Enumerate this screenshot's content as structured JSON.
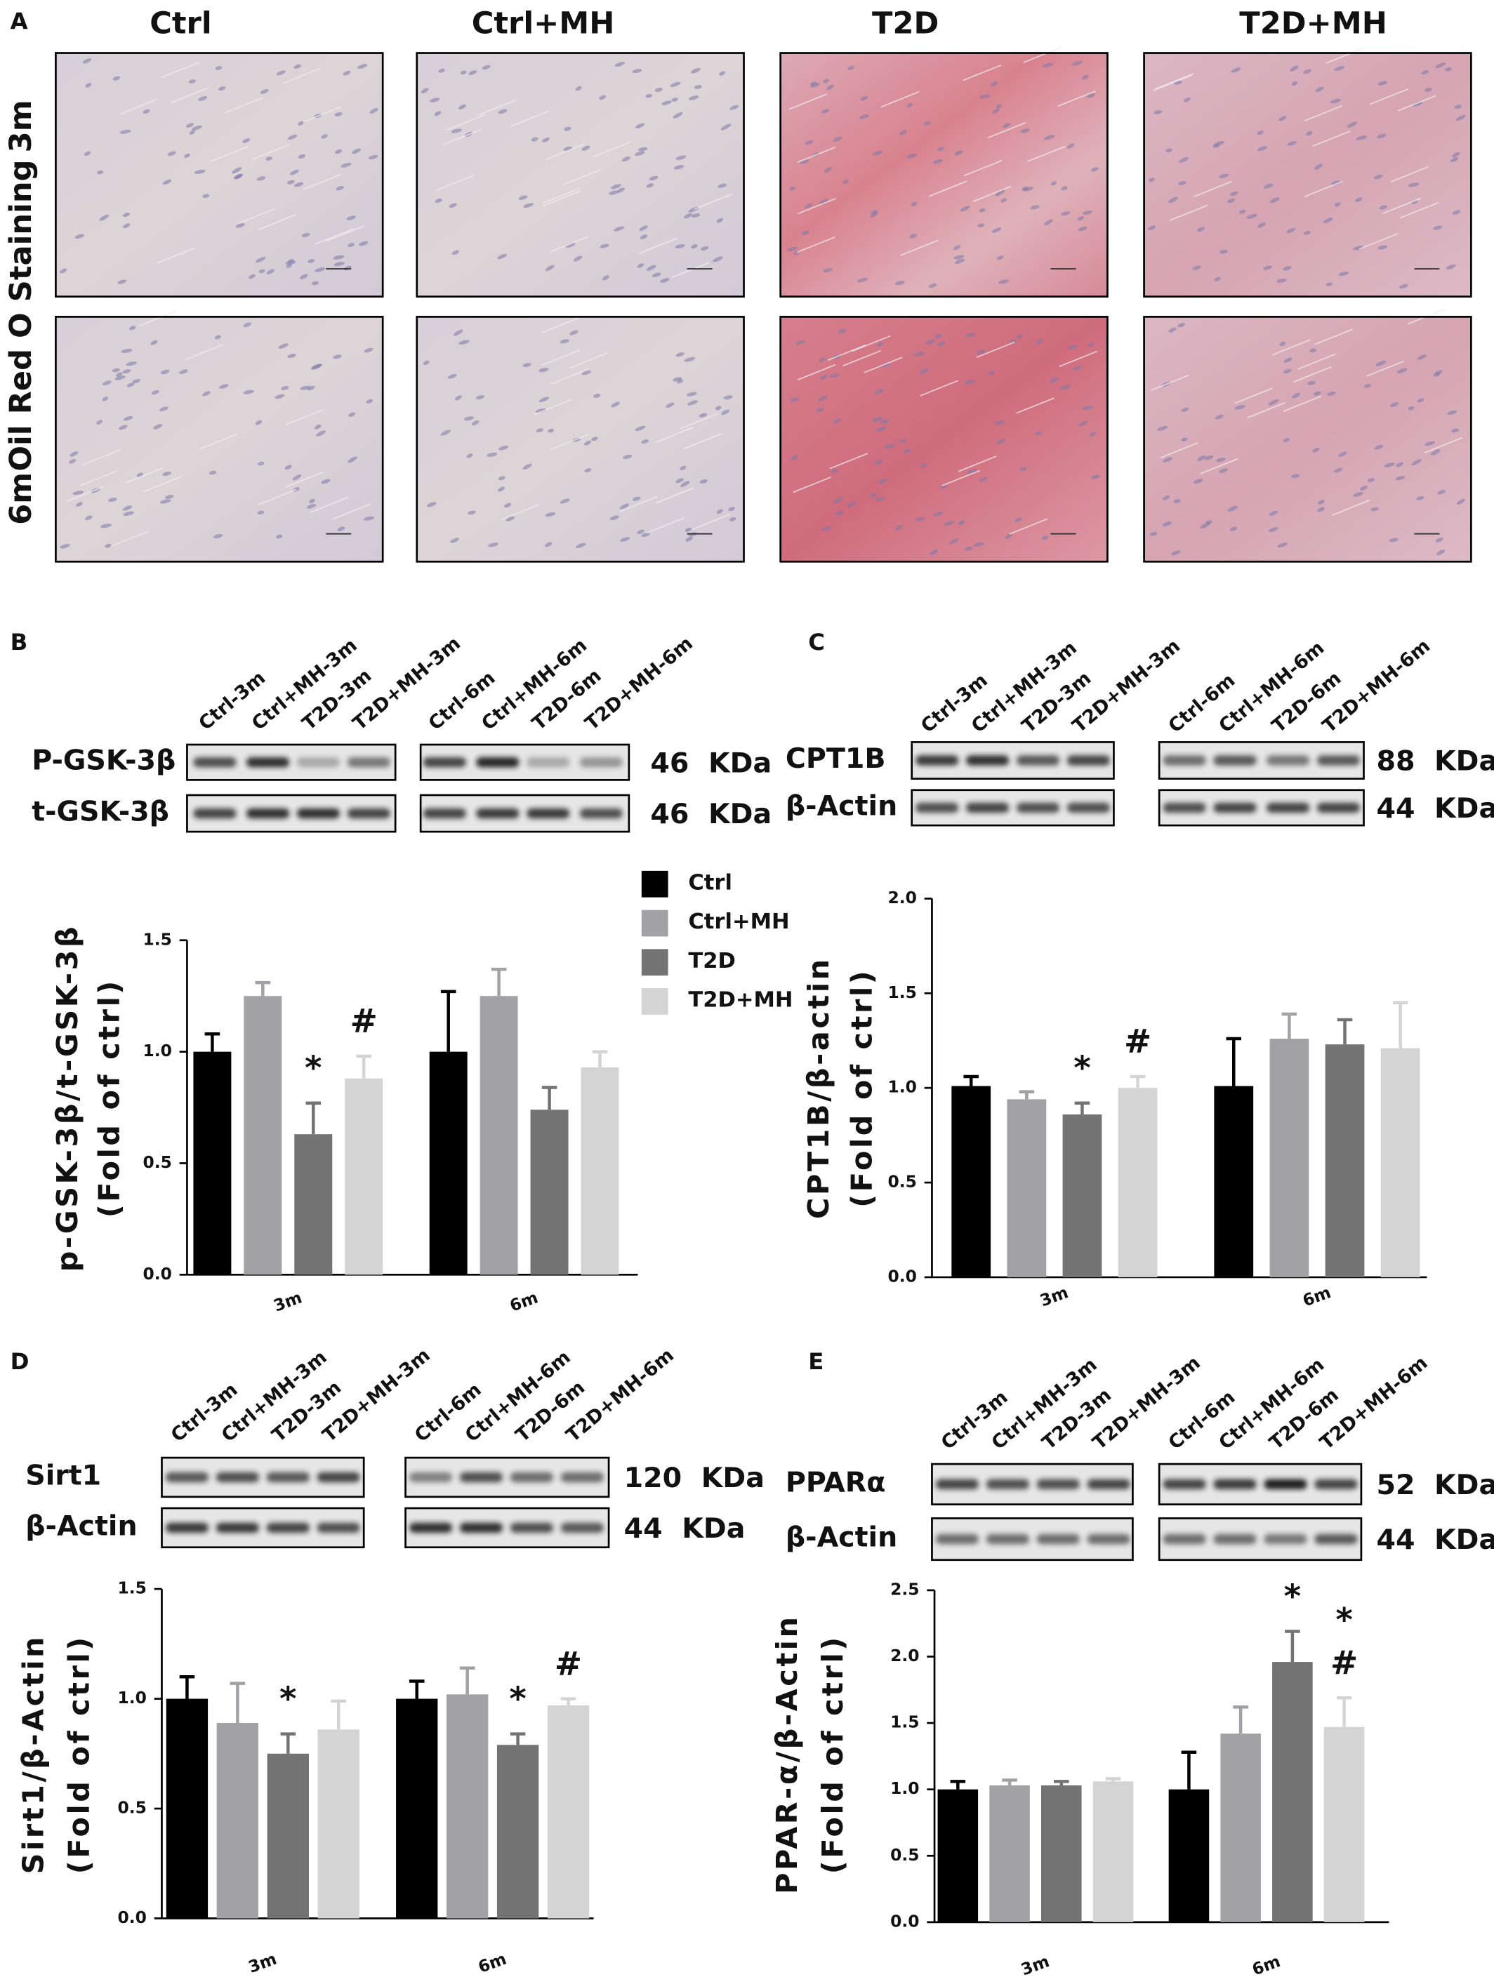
{
  "panel_labels": [
    "A",
    "B",
    "C",
    "D",
    "E"
  ],
  "staining": {
    "columns": [
      "Ctrl",
      "Ctrl+MH",
      "T2D",
      "T2D+MH"
    ],
    "rows": [
      "3m",
      "6m"
    ],
    "side_label": "Oil Red O Staining"
  },
  "blots": [
    {
      "lanes": [
        "Ctrl-3m",
        "Ctrl+MH-3m",
        "T2D-3m",
        "T2D+MH-3m",
        "Ctrl-6m",
        "Ctrl+MH-6m",
        "T2D-6m",
        "T2D+MH-6m"
      ],
      "rows": [
        {
          "protein": "P-GSK-3β",
          "size": "46  KDa"
        },
        {
          "protein": "t-GSK-3β",
          "size": "46  KDa"
        }
      ]
    },
    {
      "lanes": [
        "Ctrl-3m",
        "Ctrl+MH-3m",
        "T2D-3m",
        "T2D+MH-3m",
        "Ctrl-6m",
        "Ctrl+MH-6m",
        "T2D-6m",
        "T2D+MH-6m"
      ],
      "rows": [
        {
          "protein": "CPT1B",
          "size": "88  KDa"
        },
        {
          "protein": "β-Actin",
          "size": "44  KDa"
        }
      ]
    },
    {
      "lanes": [
        "Ctrl-3m",
        "Ctrl+MH-3m",
        "T2D-3m",
        "T2D+MH-3m",
        "Ctrl-6m",
        "Ctrl+MH-6m",
        "T2D-6m",
        "T2D+MH-6m"
      ],
      "rows": [
        {
          "protein": "Sirt1",
          "size": "120  KDa"
        },
        {
          "protein": "β-Actin",
          "size": "44  KDa"
        }
      ]
    },
    {
      "lanes": [
        "Ctrl-3m",
        "Ctrl+MH-3m",
        "T2D-3m",
        "T2D+MH-3m",
        "Ctrl-6m",
        "Ctrl+MH-6m",
        "T2D-6m",
        "T2D+MH-6m"
      ],
      "rows": [
        {
          "protein": "PPARα",
          "size": "52  KDa"
        },
        {
          "protein": "β-Actin",
          "size": "44  KDa"
        }
      ]
    }
  ],
  "chart_data": [
    {
      "type": "bar",
      "ylabel": [
        "p-GSK-3β/t-GSK-3β",
        "(Fold of ctrl)"
      ],
      "categories": [
        "3m",
        "6m"
      ],
      "legend": "right",
      "ylim": [
        0,
        1.5
      ],
      "yticks": [
        {
          "value": 0,
          "label": "0.0"
        },
        0.5,
        {
          "value": 1,
          "label": "1.0"
        },
        1.5
      ],
      "series": [
        {
          "name": "Ctrl",
          "color": "#000000",
          "values": [
            1.0,
            1.0
          ],
          "errors": [
            0.08,
            0.27
          ],
          "annotations": [
            [],
            []
          ]
        },
        {
          "name": "Ctrl+MH",
          "color": "#a2a2a6",
          "values": [
            1.25,
            1.25
          ],
          "errors": [
            0.06,
            0.12
          ],
          "annotations": [
            [],
            []
          ]
        },
        {
          "name": "T2D",
          "color": "#737373",
          "values": [
            0.63,
            0.74
          ],
          "errors": [
            0.14,
            0.1
          ],
          "annotations": [
            [
              "*"
            ],
            []
          ]
        },
        {
          "name": "T2D+MH",
          "color": "#d4d4d4",
          "values": [
            0.88,
            0.93
          ],
          "errors": [
            0.1,
            0.07
          ],
          "annotations": [
            [
              "#"
            ],
            []
          ]
        }
      ]
    },
    {
      "type": "bar",
      "ylabel": [
        "CPT1B/β-actin",
        "(Fold of ctrl)"
      ],
      "categories": [
        "3m",
        "6m"
      ],
      "ylim": [
        0,
        2
      ],
      "yticks": [
        {
          "value": 0,
          "label": "0.0"
        },
        0.5,
        {
          "value": 1,
          "label": "1.0"
        },
        1.5,
        {
          "value": 2,
          "label": "2.0"
        }
      ],
      "series": [
        {
          "color": "#000000",
          "values": [
            1.01,
            1.01
          ],
          "errors": [
            0.05,
            0.25
          ],
          "annotations": [
            [],
            []
          ]
        },
        {
          "color": "#a2a2a6",
          "values": [
            0.94,
            1.26
          ],
          "errors": [
            0.04,
            0.13
          ],
          "annotations": [
            [],
            []
          ]
        },
        {
          "color": "#737373",
          "values": [
            0.86,
            1.23
          ],
          "errors": [
            0.06,
            0.13
          ],
          "annotations": [
            [
              "*"
            ],
            []
          ]
        },
        {
          "color": "#d4d4d4",
          "values": [
            1.0,
            1.21
          ],
          "errors": [
            0.06,
            0.24
          ],
          "annotations": [
            [
              "#"
            ],
            []
          ]
        }
      ]
    },
    {
      "type": "bar",
      "ylabel": [
        "Sirt1/β-Actin",
        "(Fold of ctrl)"
      ],
      "categories": [
        "3m",
        "6m"
      ],
      "ylim": [
        0,
        1.5
      ],
      "yticks": [
        {
          "value": 0,
          "label": "0.0"
        },
        0.5,
        {
          "value": 1,
          "label": "1.0"
        },
        1.5
      ],
      "series": [
        {
          "color": "#000000",
          "values": [
            1.0,
            1.0
          ],
          "errors": [
            0.1,
            0.08
          ],
          "annotations": [
            [],
            []
          ]
        },
        {
          "color": "#a2a2a6",
          "values": [
            0.89,
            1.02
          ],
          "errors": [
            0.18,
            0.12
          ],
          "annotations": [
            [],
            []
          ]
        },
        {
          "color": "#737373",
          "values": [
            0.75,
            0.79
          ],
          "errors": [
            0.09,
            0.05
          ],
          "annotations": [
            [
              "*"
            ],
            [
              "*"
            ]
          ]
        },
        {
          "color": "#d4d4d4",
          "values": [
            0.86,
            0.97
          ],
          "errors": [
            0.13,
            0.03
          ],
          "annotations": [
            [],
            [
              "#"
            ]
          ]
        }
      ]
    },
    {
      "type": "bar",
      "ylabel": [
        "PPAR-α/β-Actin",
        "(Fold of ctrl)"
      ],
      "categories": [
        "3m",
        "6m"
      ],
      "ylim": [
        0,
        2.5
      ],
      "yticks": [
        {
          "value": 0,
          "label": "0.0"
        },
        0.5,
        {
          "value": 1,
          "label": "1.0"
        },
        1.5,
        {
          "value": 2,
          "label": "2.0"
        },
        2.5
      ],
      "series": [
        {
          "color": "#000000",
          "values": [
            1.0,
            1.0
          ],
          "errors": [
            0.06,
            0.28
          ],
          "annotations": [
            [],
            []
          ]
        },
        {
          "color": "#a2a2a6",
          "values": [
            1.03,
            1.42
          ],
          "errors": [
            0.04,
            0.2
          ],
          "annotations": [
            [],
            []
          ]
        },
        {
          "color": "#737373",
          "values": [
            1.03,
            1.96
          ],
          "errors": [
            0.03,
            0.23
          ],
          "annotations": [
            [],
            [
              "*"
            ]
          ]
        },
        {
          "color": "#d4d4d4",
          "values": [
            1.06,
            1.47
          ],
          "errors": [
            0.02,
            0.22
          ],
          "annotations": [
            [],
            [
              "#",
              "*"
            ]
          ]
        }
      ]
    }
  ]
}
